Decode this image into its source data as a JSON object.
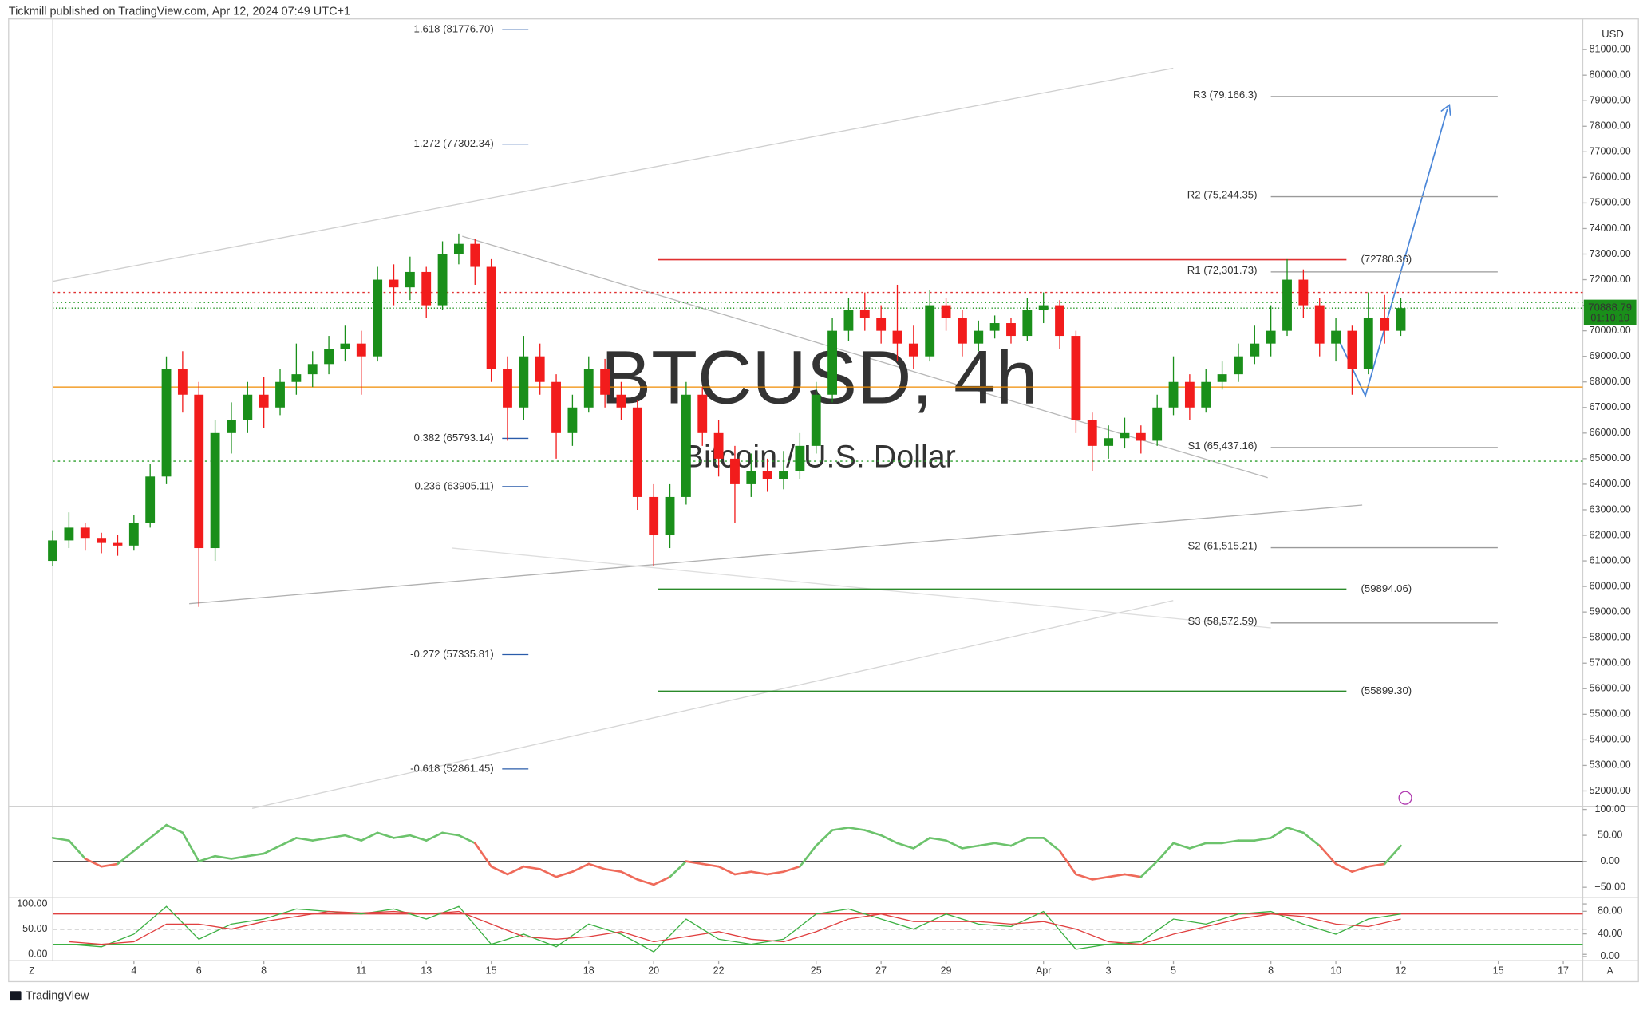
{
  "header": "Tickmill published on TradingView.com, Apr 12, 2024 07:49 UTC+1",
  "footer": "TradingView",
  "corner_labels": [
    "Z",
    "A"
  ],
  "chart_data": [
    {
      "type": "candlestick",
      "watermark": "BTCUSD, 4h",
      "watermark_subtitle": "Bitcoin / U.S. Dollar",
      "currency": "USD",
      "last_price": 70888.79,
      "countdown": "01:10:10",
      "up_color": "#1a8f1a",
      "down_color": "#f21c1c",
      "x": [
        1.5,
        2,
        2.5,
        3,
        3.5,
        4,
        4.5,
        5,
        5.5,
        6,
        6.5,
        7,
        7.5,
        8,
        8.5,
        9,
        9.5,
        10,
        10.5,
        11,
        11.5,
        12,
        12.5,
        13,
        13.5,
        14,
        14.5,
        15,
        15.5,
        16,
        16.5,
        17,
        17.5,
        18,
        18.5,
        19,
        19.5,
        20,
        20.5,
        21,
        21.5,
        22,
        22.5,
        23,
        23.5,
        24,
        24.5,
        25,
        25.5,
        26,
        26.5,
        27,
        27.5,
        28,
        28.5,
        29,
        29.5,
        30,
        30.5,
        31,
        31.5,
        32,
        32.5,
        33,
        33.5,
        34,
        34.5,
        35,
        35.5,
        36,
        36.5,
        37,
        37.5,
        38,
        38.5,
        39,
        39.5,
        40,
        40.5,
        41,
        41.5,
        42,
        42.5,
        43
      ],
      "open": [
        61000,
        61800,
        62300,
        61900,
        61700,
        61600,
        62500,
        64300,
        68500,
        67500,
        61500,
        66000,
        66500,
        67500,
        67000,
        68000,
        68300,
        68700,
        69300,
        69500,
        69000,
        72000,
        71700,
        72300,
        71000,
        73000,
        73400,
        72500,
        68500,
        67000,
        69000,
        68000,
        66000,
        67000,
        68500,
        67500,
        67000,
        63500,
        62000,
        63500,
        67500,
        66000,
        65000,
        64000,
        64500,
        64200,
        64500,
        65500,
        67500,
        70000,
        70800,
        70500,
        70000,
        69500,
        69000,
        71000,
        70500,
        69500,
        70000,
        70300,
        69800,
        70800,
        71000,
        69800,
        66500,
        65500,
        65800,
        66000,
        65700,
        67000,
        68000,
        67000,
        68000,
        68300,
        69000,
        69500,
        70000,
        72000,
        71000,
        69500,
        70000,
        68500,
        70500,
        70000
      ],
      "high": [
        62200,
        62900,
        62500,
        62100,
        62000,
        62800,
        64800,
        69000,
        69200,
        68000,
        66500,
        67200,
        68000,
        68200,
        68500,
        69500,
        69200,
        69800,
        70200,
        70000,
        72500,
        72600,
        72900,
        72500,
        73500,
        73800,
        73600,
        72800,
        69000,
        69800,
        69500,
        68300,
        67500,
        69000,
        68900,
        68000,
        67300,
        64000,
        64000,
        68000,
        67800,
        66500,
        65500,
        65200,
        65000,
        65300,
        66000,
        68000,
        70500,
        71300,
        71500,
        71000,
        71800,
        70200,
        71600,
        71300,
        70800,
        70400,
        70600,
        70500,
        71300,
        71500,
        71200,
        70000,
        66800,
        66300,
        66600,
        66300,
        67500,
        69000,
        68300,
        68500,
        68800,
        69500,
        70200,
        71000,
        72800,
        72400,
        71300,
        70500,
        70200,
        71500,
        71400,
        71300
      ],
      "low": [
        60800,
        61500,
        61400,
        61300,
        61200,
        61400,
        62300,
        64000,
        66800,
        59200,
        61000,
        65200,
        66000,
        66200,
        66700,
        67500,
        67800,
        68300,
        68800,
        67500,
        68800,
        71000,
        71200,
        70500,
        70800,
        72600,
        71800,
        68000,
        65700,
        66500,
        67500,
        65000,
        65500,
        66800,
        67000,
        66500,
        63000,
        60800,
        61500,
        63200,
        65500,
        64300,
        62500,
        63500,
        63700,
        63800,
        64200,
        65200,
        67200,
        69600,
        70000,
        69500,
        68800,
        68500,
        68800,
        70000,
        69000,
        69200,
        69700,
        69500,
        69600,
        70300,
        69300,
        66000,
        64500,
        65000,
        65400,
        65200,
        65500,
        66700,
        66500,
        66800,
        67700,
        68000,
        68700,
        69000,
        69800,
        70500,
        69000,
        68800,
        67500,
        68300,
        69500,
        69800
      ],
      "close": [
        61800,
        62300,
        61900,
        61700,
        61600,
        62500,
        64300,
        68500,
        67500,
        61500,
        66000,
        66500,
        67500,
        67000,
        68000,
        68300,
        68700,
        69300,
        69500,
        69000,
        72000,
        71700,
        72300,
        71000,
        73000,
        73400,
        72500,
        68500,
        67000,
        69000,
        68000,
        66000,
        67000,
        68500,
        67500,
        67000,
        63500,
        62000,
        63500,
        67500,
        66000,
        65000,
        64000,
        64500,
        64200,
        64500,
        65500,
        67500,
        70000,
        70800,
        70500,
        70000,
        69500,
        69000,
        71000,
        70500,
        69500,
        70000,
        70300,
        69800,
        70800,
        71000,
        69800,
        66500,
        65500,
        65800,
        66000,
        65700,
        67000,
        68000,
        67000,
        68000,
        68300,
        69000,
        69500,
        70000,
        72000,
        71000,
        69500,
        70000,
        68500,
        70500,
        70000,
        70888.79
      ],
      "xlim": [
        1.5,
        48.6
      ],
      "xticks": [
        4,
        6,
        8,
        11,
        13,
        15,
        18,
        20,
        22,
        25,
        27,
        29,
        {
          "value": 32,
          "label": "Apr"
        },
        {
          "value": 34,
          "label": "3"
        },
        {
          "value": 36,
          "label": "5"
        },
        {
          "value": 39,
          "label": "8"
        },
        {
          "value": 41,
          "label": "10"
        },
        {
          "value": 43,
          "label": "12"
        },
        {
          "value": 46,
          "label": "15"
        },
        {
          "value": 48,
          "label": "17"
        }
      ],
      "ylim": [
        51400,
        82200
      ],
      "yticks": [
        {
          "value": 52000,
          "label": "52000.00"
        },
        {
          "value": 53000,
          "label": "53000.00"
        },
        {
          "value": 54000,
          "label": "54000.00"
        },
        {
          "value": 55000,
          "label": "55000.00"
        },
        {
          "value": 56000,
          "label": "56000.00"
        },
        {
          "value": 57000,
          "label": "57000.00"
        },
        {
          "value": 58000,
          "label": "58000.00"
        },
        {
          "value": 59000,
          "label": "59000.00"
        },
        {
          "value": 60000,
          "label": "60000.00"
        },
        {
          "value": 61000,
          "label": "61000.00"
        },
        {
          "value": 62000,
          "label": "62000.00"
        },
        {
          "value": 63000,
          "label": "63000.00"
        },
        {
          "value": 64000,
          "label": "64000.00"
        },
        {
          "value": 65000,
          "label": "65000.00"
        },
        {
          "value": 66000,
          "label": "66000.00"
        },
        {
          "value": 67000,
          "label": "67000.00"
        },
        {
          "value": 68000,
          "label": "68000.00"
        },
        {
          "value": 69000,
          "label": "69000.00"
        },
        {
          "value": 70000,
          "label": "70000.00"
        },
        {
          "value": 71000,
          "label": "71000.00"
        },
        {
          "value": 72000,
          "label": "72000.00"
        },
        {
          "value": 73000,
          "label": "73000.00"
        },
        {
          "value": 74000,
          "label": "74000.00"
        },
        {
          "value": 75000,
          "label": "75000.00"
        },
        {
          "value": 76000,
          "label": "76000.00"
        },
        {
          "value": 77000,
          "label": "77000.00"
        },
        {
          "value": 78000,
          "label": "78000.00"
        },
        {
          "value": 79000,
          "label": "79000.00"
        },
        {
          "value": 80000,
          "label": "80000.00"
        },
        {
          "value": 81000,
          "label": "81000.00"
        }
      ],
      "fib_color": "#2a5caa",
      "fib_levels": [
        {
          "value": 81776.7,
          "label": "1.618 (81776.70)"
        },
        {
          "value": 77302.34,
          "label": "1.272 (77302.34)"
        },
        {
          "value": 65793.14,
          "label": "0.382 (65793.14)"
        },
        {
          "value": 63905.11,
          "label": "0.236 (63905.11)"
        },
        {
          "value": 57335.81,
          "label": "-0.272 (57335.81)"
        },
        {
          "value": 52861.45,
          "label": "-0.618 (52861.45)"
        }
      ],
      "pivot_color": "#9a9a9a",
      "pivots": [
        {
          "value": 79166.3,
          "label": "R3 (79,166.3)"
        },
        {
          "value": 75244.35,
          "label": "R2 (75,244.35)"
        },
        {
          "value": 72301.73,
          "label": "R1 (72,301.73)"
        },
        {
          "value": 65437.16,
          "label": "S1 (65,437.16)"
        },
        {
          "value": 61515.21,
          "label": "S2 (61,515.21)"
        },
        {
          "value": 58572.59,
          "label": "S3 (58,572.59)"
        }
      ],
      "levels": [
        {
          "value": 72780.36,
          "label": "(72780.36)",
          "color": "#e03030"
        },
        {
          "value": 59894.06,
          "label": "(59894.06)",
          "color": "#2a8a2a"
        },
        {
          "value": 55899.3,
          "label": "(55899.30)",
          "color": "#2a8a2a"
        }
      ],
      "hlines": [
        {
          "value": 71500,
          "color": "#e03030",
          "dash": "2 3"
        },
        {
          "value": 71100,
          "color": "#2a9d2a",
          "dash": "1 3"
        },
        {
          "value": 64900,
          "color": "#2a9d2a",
          "dash": "2 3"
        },
        {
          "value": 67800,
          "color": "#f08c00",
          "dash": "none"
        }
      ]
    },
    {
      "type": "oscillator",
      "pos_color": "#6cc36c",
      "neg_color": "#ef6a5a",
      "x": [
        1.5,
        2,
        2.5,
        3,
        3.5,
        4,
        4.5,
        5,
        5.5,
        6,
        6.5,
        7,
        7.5,
        8,
        8.5,
        9,
        9.5,
        10,
        10.5,
        11,
        11.5,
        12,
        12.5,
        13,
        13.5,
        14,
        14.5,
        15,
        15.5,
        16,
        16.5,
        17,
        17.5,
        18,
        18.5,
        19,
        19.5,
        20,
        20.5,
        21,
        21.5,
        22,
        22.5,
        23,
        23.5,
        24,
        24.5,
        25,
        25.5,
        26,
        26.5,
        27,
        27.5,
        28,
        28.5,
        29,
        29.5,
        30,
        30.5,
        31,
        31.5,
        32,
        32.5,
        33,
        33.5,
        34,
        34.5,
        35,
        35.5,
        36,
        36.5,
        37,
        37.5,
        38,
        38.5,
        39,
        39.5,
        40,
        40.5,
        41,
        41.5,
        42,
        42.5,
        43
      ],
      "values": [
        45,
        40,
        5,
        -10,
        -5,
        20,
        45,
        70,
        55,
        0,
        10,
        5,
        10,
        15,
        30,
        45,
        40,
        45,
        50,
        40,
        55,
        45,
        50,
        40,
        55,
        50,
        35,
        -10,
        -25,
        -10,
        -15,
        -30,
        -20,
        -5,
        -15,
        -20,
        -35,
        -45,
        -30,
        0,
        -5,
        -10,
        -25,
        -20,
        -25,
        -20,
        -10,
        30,
        60,
        65,
        60,
        50,
        35,
        25,
        45,
        40,
        25,
        30,
        35,
        30,
        45,
        45,
        20,
        -25,
        -35,
        -30,
        -25,
        -30,
        0,
        35,
        25,
        35,
        35,
        40,
        40,
        45,
        65,
        55,
        30,
        -5,
        -20,
        -10,
        -5,
        30
      ],
      "xlim": [
        1.5,
        48.6
      ],
      "ylim": [
        -70,
        106
      ],
      "yticks": [
        {
          "value": 100,
          "label": "100.00"
        },
        {
          "value": 50,
          "label": "50.00"
        },
        {
          "value": 0,
          "label": "0.00"
        },
        {
          "value": -50,
          "label": "−50.00"
        }
      ],
      "hlines": [
        {
          "value": 0,
          "color": "#555555",
          "dash": "none"
        }
      ]
    },
    {
      "type": "line",
      "x": [
        2,
        3,
        4,
        5,
        6,
        7,
        8,
        9,
        10,
        11,
        12,
        13,
        14,
        15,
        16,
        17,
        18,
        19,
        20,
        21,
        22,
        23,
        24,
        25,
        26,
        27,
        28,
        29,
        30,
        31,
        32,
        33,
        34,
        35,
        36,
        37,
        38,
        39,
        40,
        41,
        42,
        43
      ],
      "series": [
        {
          "color": "#3cb043",
          "values": [
            20,
            15,
            40,
            95,
            30,
            60,
            70,
            90,
            85,
            80,
            90,
            70,
            95,
            20,
            40,
            15,
            60,
            40,
            5,
            70,
            30,
            20,
            30,
            80,
            90,
            70,
            50,
            80,
            60,
            55,
            85,
            10,
            20,
            25,
            70,
            60,
            80,
            85,
            60,
            40,
            70,
            80
          ]
        },
        {
          "color": "#e04040",
          "values": [
            25,
            20,
            25,
            60,
            60,
            50,
            65,
            75,
            85,
            82,
            85,
            80,
            85,
            60,
            35,
            30,
            35,
            45,
            25,
            35,
            45,
            30,
            25,
            45,
            70,
            80,
            65,
            65,
            65,
            60,
            65,
            50,
            25,
            20,
            40,
            55,
            70,
            80,
            75,
            60,
            55,
            70
          ]
        }
      ],
      "xlim": [
        1.5,
        48.6
      ],
      "ylim": [
        -12.5,
        112.5
      ],
      "yticks": [
        {
          "value": 100,
          "label": "100.00"
        },
        {
          "value": 50,
          "label": "50.00"
        },
        {
          "value": 0,
          "label": "0.00"
        }
      ],
      "y2lim": [
        -7.4,
        104.2
      ],
      "y2ticks": [
        {
          "value": 80,
          "label": "80.00"
        },
        {
          "value": 40,
          "label": "40.00"
        },
        {
          "value": 0,
          "label": "0.00"
        }
      ],
      "hlines": [
        {
          "value": 80,
          "color": "#e04040",
          "dash": "none"
        },
        {
          "value": 50,
          "color": "#9a9a9a",
          "dash": "4 3"
        },
        {
          "value": 20,
          "color": "#3cb043",
          "dash": "none"
        }
      ]
    }
  ]
}
